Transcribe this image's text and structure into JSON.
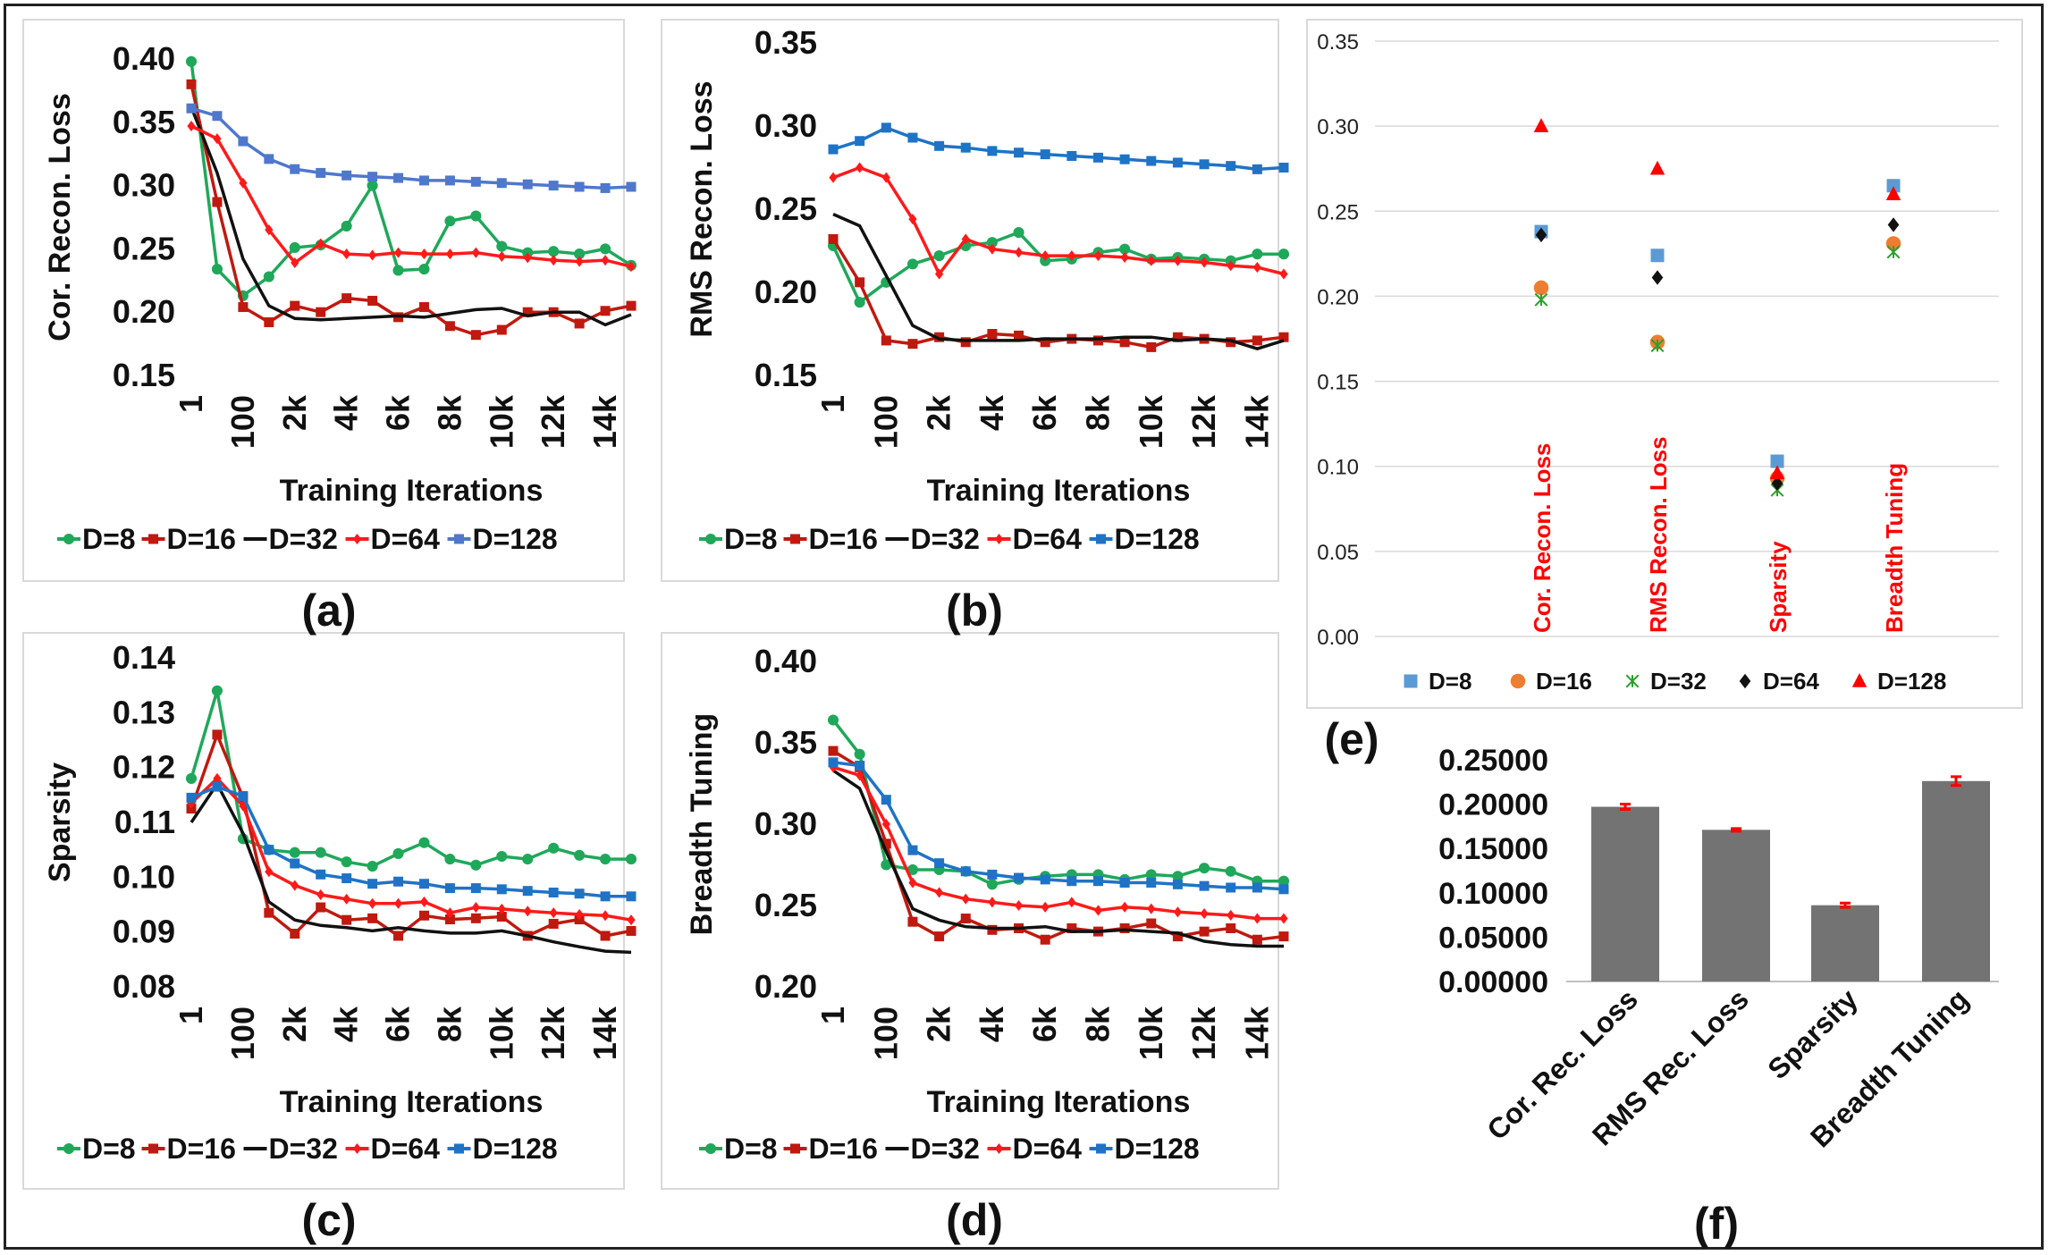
{
  "chart_data": [
    {
      "panel": "a",
      "type": "line",
      "title": "",
      "xlabel": "Training Iterations",
      "ylabel": "Cor. Recon. Loss",
      "ylim": [
        0.15,
        0.4
      ],
      "yticks": [
        "0.15",
        "0.20",
        "0.25",
        "0.30",
        "0.35",
        "0.40"
      ],
      "xticks": [
        "1",
        "100",
        "2k",
        "4k",
        "6k",
        "8k",
        "10k",
        "12k",
        "14k"
      ],
      "series": [
        {
          "name": "D=8",
          "color": "#1fa85a",
          "marker": "circle",
          "values": [
            0.398,
            0.234,
            0.213,
            0.228,
            0.251,
            0.253,
            0.268,
            0.3,
            0.233,
            0.234,
            0.272,
            0.276,
            0.252,
            0.247,
            0.248,
            0.246,
            0.25,
            0.237
          ]
        },
        {
          "name": "D=16",
          "color": "#c0190f",
          "marker": "square",
          "values": [
            0.38,
            0.287,
            0.204,
            0.192,
            0.205,
            0.2,
            0.211,
            0.209,
            0.196,
            0.204,
            0.189,
            0.182,
            0.186,
            0.2,
            0.2,
            0.191,
            0.201,
            0.205
          ]
        },
        {
          "name": "D=32",
          "color": "#111111",
          "marker": "none",
          "values": [
            0.362,
            0.31,
            0.242,
            0.205,
            0.195,
            0.194,
            0.195,
            0.196,
            0.197,
            0.196,
            0.199,
            0.202,
            0.203,
            0.197,
            0.2,
            0.2,
            0.19,
            0.198
          ]
        },
        {
          "name": "D=64",
          "color": "#ff1a1a",
          "marker": "diamond",
          "values": [
            0.347,
            0.337,
            0.302,
            0.265,
            0.239,
            0.254,
            0.246,
            0.245,
            0.247,
            0.246,
            0.246,
            0.247,
            0.244,
            0.243,
            0.241,
            0.24,
            0.241,
            0.236
          ]
        },
        {
          "name": "D=128",
          "color": "#4f78cc",
          "marker": "square",
          "values": [
            0.361,
            0.355,
            0.335,
            0.321,
            0.313,
            0.31,
            0.308,
            0.307,
            0.306,
            0.304,
            0.304,
            0.303,
            0.302,
            0.301,
            0.3,
            0.299,
            0.298,
            0.299
          ]
        }
      ]
    },
    {
      "panel": "b",
      "type": "line",
      "title": "",
      "xlabel": "Training Iterations",
      "ylabel": "RMS Recon. Loss",
      "ylim": [
        0.15,
        0.35
      ],
      "yticks": [
        "0.15",
        "0.20",
        "0.25",
        "0.30",
        "0.35"
      ],
      "xticks": [
        "1",
        "100",
        "2k",
        "4k",
        "6k",
        "8k",
        "10k",
        "12k",
        "14k"
      ],
      "series": [
        {
          "name": "D=8",
          "color": "#1fa85a",
          "marker": "circle",
          "values": [
            0.228,
            0.194,
            0.206,
            0.217,
            0.222,
            0.228,
            0.23,
            0.236,
            0.219,
            0.22,
            0.224,
            0.226,
            0.22,
            0.221,
            0.22,
            0.219,
            0.223,
            0.223
          ]
        },
        {
          "name": "D=16",
          "color": "#c0190f",
          "marker": "square",
          "values": [
            0.232,
            0.206,
            0.171,
            0.169,
            0.173,
            0.17,
            0.175,
            0.174,
            0.17,
            0.172,
            0.171,
            0.17,
            0.167,
            0.173,
            0.172,
            0.17,
            0.171,
            0.173
          ]
        },
        {
          "name": "D=32",
          "color": "#111111",
          "marker": "none",
          "values": [
            0.247,
            0.24,
            0.21,
            0.18,
            0.172,
            0.171,
            0.171,
            0.171,
            0.172,
            0.172,
            0.172,
            0.173,
            0.173,
            0.171,
            0.172,
            0.171,
            0.166,
            0.171
          ]
        },
        {
          "name": "D=64",
          "color": "#ff1a1a",
          "marker": "diamond",
          "values": [
            0.269,
            0.275,
            0.269,
            0.244,
            0.211,
            0.232,
            0.226,
            0.224,
            0.222,
            0.222,
            0.222,
            0.221,
            0.219,
            0.219,
            0.218,
            0.216,
            0.215,
            0.211
          ]
        },
        {
          "name": "D=128",
          "color": "#1f73c6",
          "marker": "square",
          "values": [
            0.286,
            0.291,
            0.299,
            0.293,
            0.288,
            0.287,
            0.285,
            0.284,
            0.283,
            0.282,
            0.281,
            0.28,
            0.279,
            0.278,
            0.277,
            0.276,
            0.274,
            0.275
          ]
        }
      ]
    },
    {
      "panel": "c",
      "type": "line",
      "title": "",
      "xlabel": "Training Iterations",
      "ylabel": "Sparsity",
      "ylim": [
        0.08,
        0.14
      ],
      "yticks": [
        "0.08",
        "0.09",
        "0.10",
        "0.11",
        "0.12",
        "0.13",
        "0.14"
      ],
      "xticks": [
        "1",
        "100",
        "2k",
        "4k",
        "6k",
        "8k",
        "10k",
        "12k",
        "14k"
      ],
      "series": [
        {
          "name": "D=8",
          "color": "#1fa85a",
          "marker": "circle",
          "values": [
            0.118,
            0.134,
            0.107,
            0.105,
            0.1045,
            0.1045,
            0.1028,
            0.102,
            0.1043,
            0.1063,
            0.1033,
            0.1022,
            0.1038,
            0.1033,
            0.1053,
            0.104,
            0.1033,
            0.1033
          ]
        },
        {
          "name": "D=16",
          "color": "#c0190f",
          "marker": "square",
          "values": [
            0.1125,
            0.126,
            0.1145,
            0.0935,
            0.0897,
            0.0945,
            0.0922,
            0.0925,
            0.0893,
            0.093,
            0.0923,
            0.0925,
            0.0928,
            0.0893,
            0.0915,
            0.0923,
            0.0893,
            0.0902
          ]
        },
        {
          "name": "D=32",
          "color": "#111111",
          "marker": "none",
          "values": [
            0.11,
            0.117,
            0.108,
            0.0955,
            0.0922,
            0.0912,
            0.0908,
            0.0902,
            0.0908,
            0.0902,
            0.0898,
            0.0898,
            0.0902,
            0.0893,
            0.0882,
            0.0873,
            0.0865,
            0.0863
          ]
        },
        {
          "name": "D=64",
          "color": "#ff1a1a",
          "marker": "diamond",
          "values": [
            0.1135,
            0.118,
            0.113,
            0.101,
            0.0985,
            0.0968,
            0.096,
            0.0952,
            0.0952,
            0.0955,
            0.0935,
            0.0945,
            0.0942,
            0.0938,
            0.0935,
            0.0932,
            0.093,
            0.0922
          ]
        },
        {
          "name": "D=128",
          "color": "#1f73c6",
          "marker": "square",
          "values": [
            0.1145,
            0.1165,
            0.1148,
            0.105,
            0.1025,
            0.1005,
            0.0998,
            0.0988,
            0.0992,
            0.0988,
            0.098,
            0.098,
            0.0978,
            0.0975,
            0.0972,
            0.097,
            0.0965,
            0.0965
          ]
        }
      ]
    },
    {
      "panel": "d",
      "type": "line",
      "title": "",
      "xlabel": "Training Iterations",
      "ylabel": "Breadth Tuning",
      "ylim": [
        0.2,
        0.4
      ],
      "yticks": [
        "0.20",
        "0.25",
        "0.30",
        "0.35",
        "0.40"
      ],
      "xticks": [
        "1",
        "100",
        "2k",
        "4k",
        "6k",
        "8k",
        "10k",
        "12k",
        "14k"
      ],
      "series": [
        {
          "name": "D=8",
          "color": "#1fa85a",
          "marker": "circle",
          "values": [
            0.364,
            0.343,
            0.275,
            0.272,
            0.272,
            0.271,
            0.263,
            0.266,
            0.268,
            0.269,
            0.269,
            0.266,
            0.269,
            0.268,
            0.273,
            0.271,
            0.265,
            0.265
          ]
        },
        {
          "name": "D=16",
          "color": "#c0190f",
          "marker": "square",
          "values": [
            0.345,
            0.335,
            0.288,
            0.24,
            0.231,
            0.242,
            0.235,
            0.236,
            0.229,
            0.236,
            0.234,
            0.236,
            0.239,
            0.231,
            0.234,
            0.236,
            0.229,
            0.231
          ]
        },
        {
          "name": "D=32",
          "color": "#111111",
          "marker": "none",
          "values": [
            0.333,
            0.322,
            0.283,
            0.248,
            0.241,
            0.237,
            0.236,
            0.236,
            0.237,
            0.234,
            0.234,
            0.235,
            0.234,
            0.233,
            0.228,
            0.226,
            0.225,
            0.225
          ]
        },
        {
          "name": "D=64",
          "color": "#ff1a1a",
          "marker": "diamond",
          "values": [
            0.335,
            0.33,
            0.3,
            0.264,
            0.258,
            0.254,
            0.252,
            0.25,
            0.249,
            0.252,
            0.247,
            0.249,
            0.248,
            0.246,
            0.245,
            0.244,
            0.242,
            0.242
          ]
        },
        {
          "name": "D=128",
          "color": "#1f73c6",
          "marker": "square",
          "values": [
            0.338,
            0.336,
            0.315,
            0.284,
            0.276,
            0.271,
            0.269,
            0.267,
            0.266,
            0.265,
            0.265,
            0.264,
            0.264,
            0.263,
            0.262,
            0.261,
            0.261,
            0.26
          ]
        }
      ]
    },
    {
      "panel": "e",
      "type": "scatter",
      "title": "",
      "ylim": [
        0.0,
        0.35
      ],
      "yticks": [
        "0.00",
        "0.05",
        "0.10",
        "0.15",
        "0.20",
        "0.25",
        "0.30",
        "0.35"
      ],
      "categories": [
        "Cor. Recon. Loss",
        "RMS Recon. Loss",
        "Sparsity",
        "Breadth Tuning"
      ],
      "series": [
        {
          "name": "D=8",
          "color": "#5b9bd5",
          "marker": "square",
          "values": [
            0.238,
            0.224,
            0.103,
            0.265
          ]
        },
        {
          "name": "D=16",
          "color": "#ed7d31",
          "marker": "circle",
          "values": [
            0.205,
            0.173,
            0.093,
            0.231
          ]
        },
        {
          "name": "D=32",
          "color": "#2ca02c",
          "marker": "x",
          "values": [
            0.198,
            0.171,
            0.086,
            0.226
          ]
        },
        {
          "name": "D=64",
          "color": "#111111",
          "marker": "diamond",
          "values": [
            0.236,
            0.211,
            0.09,
            0.242
          ]
        },
        {
          "name": "D=128",
          "color": "#ff0000",
          "marker": "triangle",
          "values": [
            0.3,
            0.275,
            0.096,
            0.26
          ]
        }
      ]
    },
    {
      "panel": "f",
      "type": "bar",
      "title": "",
      "ylim": [
        0.0,
        0.25
      ],
      "yticks": [
        "0.00000",
        "0.05000",
        "0.10000",
        "0.15000",
        "0.20000",
        "0.25000"
      ],
      "categories": [
        "Cor. Rec. Loss",
        "RMS Rec. Loss",
        "Sparsity",
        "Breadth Tuning"
      ],
      "values": [
        0.197,
        0.171,
        0.086,
        0.226
      ],
      "errors": [
        0.003,
        0.0015,
        0.0025,
        0.005
      ],
      "bar_color": "#737373",
      "error_color": "#ff0000"
    }
  ],
  "panel_labels": [
    "(a)",
    "(b)",
    "(c)",
    "(d)",
    "(e)",
    "(f)"
  ]
}
